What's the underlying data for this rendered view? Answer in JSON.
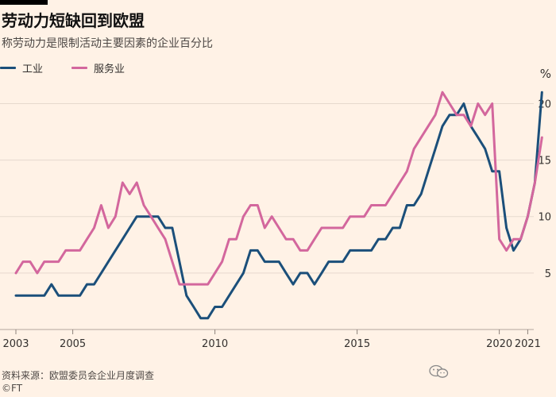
{
  "chart_data": {
    "type": "line",
    "title": "劳动力短缺回到欧盟",
    "subtitle": "称劳动力是限制活动主要因素的企业百分比",
    "unit": "%",
    "xlim": [
      2003,
      2021.1
    ],
    "ylim": [
      0,
      22
    ],
    "yticks": [
      5,
      10,
      15,
      20
    ],
    "xticks": [
      {
        "value": 2003,
        "label": "2003"
      },
      {
        "value": 2005,
        "label": "2005"
      },
      {
        "value": 2010,
        "label": "2010"
      },
      {
        "value": 2015,
        "label": "2015"
      },
      {
        "value": 2020,
        "label": "2020"
      },
      {
        "value": 2021,
        "label": "2021"
      }
    ],
    "legend_position": "top-left",
    "grid": true,
    "series": [
      {
        "name": "工业",
        "color": "#1b4f7a",
        "points": [
          [
            2003.0,
            3
          ],
          [
            2003.25,
            3
          ],
          [
            2003.5,
            3
          ],
          [
            2003.75,
            3
          ],
          [
            2004.0,
            3
          ],
          [
            2004.25,
            4
          ],
          [
            2004.5,
            3
          ],
          [
            2004.75,
            3
          ],
          [
            2005.0,
            3
          ],
          [
            2005.25,
            3
          ],
          [
            2005.5,
            4
          ],
          [
            2005.75,
            4
          ],
          [
            2006.0,
            5
          ],
          [
            2006.25,
            6
          ],
          [
            2006.5,
            7
          ],
          [
            2006.75,
            8
          ],
          [
            2007.0,
            9
          ],
          [
            2007.25,
            10
          ],
          [
            2007.5,
            10
          ],
          [
            2007.75,
            10
          ],
          [
            2008.0,
            10
          ],
          [
            2008.25,
            9
          ],
          [
            2008.5,
            9
          ],
          [
            2008.75,
            6
          ],
          [
            2009.0,
            3
          ],
          [
            2009.25,
            2
          ],
          [
            2009.5,
            1
          ],
          [
            2009.75,
            1
          ],
          [
            2010.0,
            2
          ],
          [
            2010.25,
            2
          ],
          [
            2010.5,
            3
          ],
          [
            2010.75,
            4
          ],
          [
            2011.0,
            5
          ],
          [
            2011.25,
            7
          ],
          [
            2011.5,
            7
          ],
          [
            2011.75,
            6
          ],
          [
            2012.0,
            6
          ],
          [
            2012.25,
            6
          ],
          [
            2012.5,
            5
          ],
          [
            2012.75,
            4
          ],
          [
            2013.0,
            5
          ],
          [
            2013.25,
            5
          ],
          [
            2013.5,
            4
          ],
          [
            2013.75,
            5
          ],
          [
            2014.0,
            6
          ],
          [
            2014.25,
            6
          ],
          [
            2014.5,
            6
          ],
          [
            2014.75,
            7
          ],
          [
            2015.0,
            7
          ],
          [
            2015.25,
            7
          ],
          [
            2015.5,
            7
          ],
          [
            2015.75,
            8
          ],
          [
            2016.0,
            8
          ],
          [
            2016.25,
            9
          ],
          [
            2016.5,
            9
          ],
          [
            2016.75,
            11
          ],
          [
            2017.0,
            11
          ],
          [
            2017.25,
            12
          ],
          [
            2017.5,
            14
          ],
          [
            2017.75,
            16
          ],
          [
            2018.0,
            18
          ],
          [
            2018.25,
            19
          ],
          [
            2018.5,
            19
          ],
          [
            2018.75,
            20
          ],
          [
            2019.0,
            18
          ],
          [
            2019.25,
            17
          ],
          [
            2019.5,
            16
          ],
          [
            2019.75,
            14
          ],
          [
            2020.0,
            14
          ],
          [
            2020.25,
            9
          ],
          [
            2020.5,
            7
          ],
          [
            2020.75,
            8
          ],
          [
            2021.0,
            10
          ],
          [
            2021.25,
            13
          ],
          [
            2021.5,
            21
          ]
        ]
      },
      {
        "name": "服务业",
        "color": "#d3679d",
        "points": [
          [
            2003.0,
            5
          ],
          [
            2003.25,
            6
          ],
          [
            2003.5,
            6
          ],
          [
            2003.75,
            5
          ],
          [
            2004.0,
            6
          ],
          [
            2004.25,
            6
          ],
          [
            2004.5,
            6
          ],
          [
            2004.75,
            7
          ],
          [
            2005.0,
            7
          ],
          [
            2005.25,
            7
          ],
          [
            2005.5,
            8
          ],
          [
            2005.75,
            9
          ],
          [
            2006.0,
            11
          ],
          [
            2006.25,
            9
          ],
          [
            2006.5,
            10
          ],
          [
            2006.75,
            13
          ],
          [
            2007.0,
            12
          ],
          [
            2007.25,
            13
          ],
          [
            2007.5,
            11
          ],
          [
            2007.75,
            10
          ],
          [
            2008.0,
            9
          ],
          [
            2008.25,
            8
          ],
          [
            2008.5,
            6
          ],
          [
            2008.75,
            4
          ],
          [
            2009.0,
            4
          ],
          [
            2009.25,
            4
          ],
          [
            2009.5,
            4
          ],
          [
            2009.75,
            4
          ],
          [
            2010.0,
            5
          ],
          [
            2010.25,
            6
          ],
          [
            2010.5,
            8
          ],
          [
            2010.75,
            8
          ],
          [
            2011.0,
            10
          ],
          [
            2011.25,
            11
          ],
          [
            2011.5,
            11
          ],
          [
            2011.75,
            9
          ],
          [
            2012.0,
            10
          ],
          [
            2012.25,
            9
          ],
          [
            2012.5,
            8
          ],
          [
            2012.75,
            8
          ],
          [
            2013.0,
            7
          ],
          [
            2013.25,
            7
          ],
          [
            2013.5,
            8
          ],
          [
            2013.75,
            9
          ],
          [
            2014.0,
            9
          ],
          [
            2014.25,
            9
          ],
          [
            2014.5,
            9
          ],
          [
            2014.75,
            10
          ],
          [
            2015.0,
            10
          ],
          [
            2015.25,
            10
          ],
          [
            2015.5,
            11
          ],
          [
            2015.75,
            11
          ],
          [
            2016.0,
            11
          ],
          [
            2016.25,
            12
          ],
          [
            2016.5,
            13
          ],
          [
            2016.75,
            14
          ],
          [
            2017.0,
            16
          ],
          [
            2017.25,
            17
          ],
          [
            2017.5,
            18
          ],
          [
            2017.75,
            19
          ],
          [
            2018.0,
            21
          ],
          [
            2018.25,
            20
          ],
          [
            2018.5,
            19
          ],
          [
            2018.75,
            19
          ],
          [
            2019.0,
            18
          ],
          [
            2019.25,
            20
          ],
          [
            2019.5,
            19
          ],
          [
            2019.75,
            20
          ],
          [
            2020.0,
            8
          ],
          [
            2020.25,
            7
          ],
          [
            2020.5,
            8
          ],
          [
            2020.75,
            8
          ],
          [
            2021.0,
            10
          ],
          [
            2021.25,
            13
          ],
          [
            2021.5,
            17
          ]
        ]
      }
    ]
  },
  "footer": {
    "source": "资料来源：欧盟委员会企业月度调查",
    "credit": "©FT"
  }
}
